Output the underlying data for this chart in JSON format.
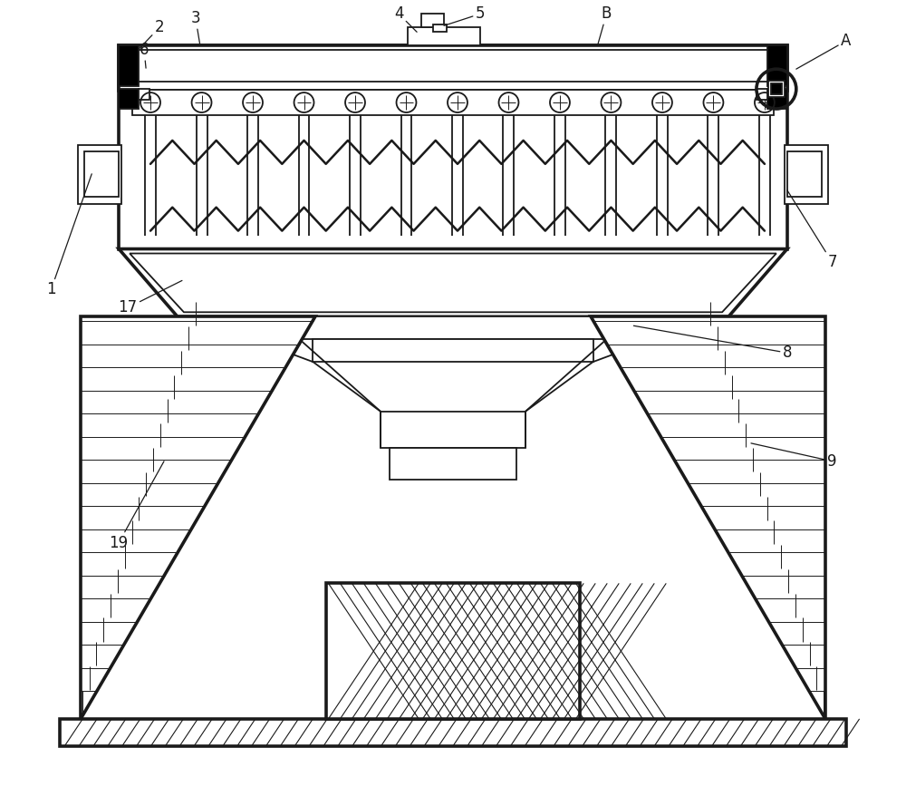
{
  "bg_color": "#ffffff",
  "line_color": "#1a1a1a",
  "lw": 1.3,
  "fig_width": 10.0,
  "fig_height": 8.89
}
